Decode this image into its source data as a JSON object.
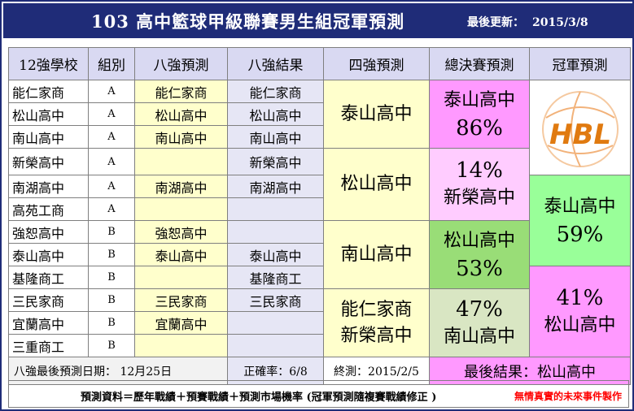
{
  "header": {
    "title": "103 高中籃球甲級聯賽男生組冠軍預測",
    "updated_label": "最後更新：",
    "updated_date": "2015/3/8"
  },
  "columns": [
    "12強學校",
    "組別",
    "八強預測",
    "八強結果",
    "四強預測",
    "總決賽預測",
    "冠軍預測"
  ],
  "rows": [
    {
      "school": "能仁家商",
      "group": "A",
      "pred8": "能仁家商",
      "res8": "能仁家商"
    },
    {
      "school": "松山高中",
      "group": "A",
      "pred8": "松山高中",
      "res8": "松山高中"
    },
    {
      "school": "南山高中",
      "group": "A",
      "pred8": "南山高中",
      "res8": "南山高中"
    },
    {
      "school": "新榮高中",
      "group": "A",
      "pred8": "",
      "res8": "新榮高中"
    },
    {
      "school": "南湖高中",
      "group": "A",
      "pred8": "南湖高中",
      "res8": "南湖高中"
    },
    {
      "school": "高苑工商",
      "group": "A",
      "pred8": "",
      "res8": ""
    },
    {
      "school": "強恕高中",
      "group": "B",
      "pred8": "強恕高中",
      "res8": ""
    },
    {
      "school": "泰山高中",
      "group": "B",
      "pred8": "泰山高中",
      "res8": "泰山高中"
    },
    {
      "school": "基隆商工",
      "group": "B",
      "pred8": "",
      "res8": "基隆商工"
    },
    {
      "school": "三民家商",
      "group": "B",
      "pred8": "三民家商",
      "res8": "三民家商"
    },
    {
      "school": "宜蘭高中",
      "group": "B",
      "pred8": "宜蘭高中",
      "res8": ""
    },
    {
      "school": "三重商工",
      "group": "B",
      "pred8": "",
      "res8": ""
    }
  ],
  "semis": [
    "泰山高中",
    "松山高中",
    "南山高中",
    "能仁家商",
    "新榮高中"
  ],
  "finals": [
    {
      "team": "泰山高中",
      "pct": "86%"
    },
    {
      "pct": "14%",
      "team": "新榮高中"
    },
    {
      "team": "松山高中",
      "pct": "53%"
    },
    {
      "pct": "47%",
      "team": "南山高中"
    }
  ],
  "champion": [
    {
      "team": "泰山高中",
      "pct": "59%"
    },
    {
      "pct": "41%",
      "team": "松山高中"
    }
  ],
  "logo_text": "HBL",
  "footer": {
    "pred8_date": "八強最後預測日期： 12月25日",
    "accuracy": "正確率：6/8",
    "final_date": "終測：2015/2/5",
    "final_result": "最後結果：松山高中"
  },
  "bottom": {
    "note": "預測資料＝歷年戰績＋預賽戰績＋預測市場機率 (冠軍預測隨複賽戰績修正 )",
    "credit": "無情真實的未來事件製作"
  },
  "colors": {
    "header_bg": "#1f2c78",
    "pink": "#ff99ff",
    "light_pink": "#ffccff",
    "green": "#99dd77",
    "champion_green": "#99ff99",
    "yellow": "#ffffcc"
  }
}
